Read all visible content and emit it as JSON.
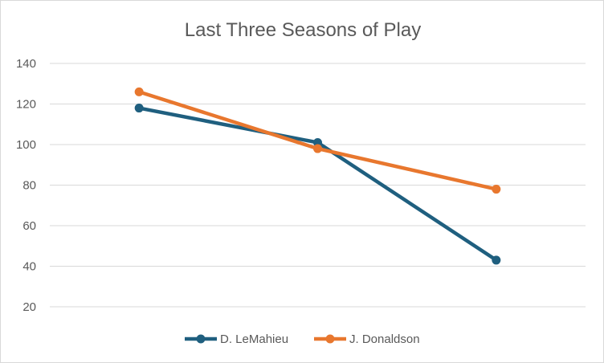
{
  "chart_data": {
    "type": "line",
    "title": "Last Three Seasons of Play",
    "xlabel": "",
    "ylabel": "",
    "categories": [
      "",
      "",
      ""
    ],
    "ylim": [
      20,
      140
    ],
    "yticks": [
      20,
      40,
      60,
      80,
      100,
      120,
      140
    ],
    "grid": true,
    "legend_position": "bottom",
    "series": [
      {
        "name": "D. LeMahieu",
        "values": [
          118,
          101,
          43
        ],
        "color": "#1F5F7F"
      },
      {
        "name": "J. Donaldson",
        "values": [
          126,
          98,
          78
        ],
        "color": "#E8772E"
      }
    ]
  }
}
